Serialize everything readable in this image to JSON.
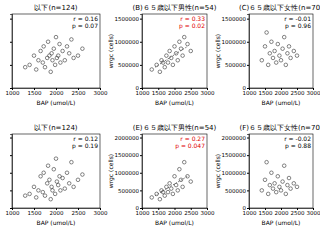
{
  "chart_data": [
    {
      "type": "scatter",
      "title": "以下(n=124)",
      "x_label": "BAP (umol/L)",
      "tick_labels": "x",
      "xlim": [
        1000,
        3000
      ],
      "xticks": [
        1000,
        1500,
        2000,
        2500,
        3000
      ],
      "ylim": [
        0,
        1600000
      ],
      "yticks": [
        0,
        500000,
        1000000,
        1500000
      ],
      "annotations": [
        {
          "text": "r = 0.16",
          "color": "#000000"
        },
        {
          "text": "p = 0.07",
          "color": "#000000"
        }
      ],
      "series": [
        {
          "type": "scatter",
          "marker": "circle",
          "color": "#333333",
          "x": [
            1400,
            1500,
            1550,
            1600,
            1650,
            1700,
            1720,
            1750,
            1800,
            1820,
            1850,
            1880,
            1900,
            1920,
            1950,
            1980,
            2000,
            2020,
            2050,
            2080,
            2100,
            2150,
            2200,
            2250,
            2300,
            2350,
            2400,
            2500,
            2600,
            1300
          ],
          "values": [
            500000,
            700000,
            400000,
            600000,
            800000,
            550000,
            900000,
            450000,
            650000,
            1000000,
            700000,
            350000,
            750000,
            600000,
            850000,
            500000,
            1100000,
            650000,
            700000,
            950000,
            550000,
            800000,
            600000,
            900000,
            750000,
            1050000,
            650000,
            700000,
            850000,
            450000
          ]
        }
      ]
    },
    {
      "type": "scatter",
      "title": "(B)６５歳以下男性(n=54)",
      "x_label": "BAP (umol/L)",
      "y_label": "wrgc (cells)",
      "xlim": [
        1000,
        3000
      ],
      "xticks": [
        1000,
        1500,
        2000,
        2500,
        3000
      ],
      "ylim": [
        0,
        1600000
      ],
      "yticks": [
        0,
        500000,
        1000000,
        1500000
      ],
      "annotations": [
        {
          "text": "r = 0.33",
          "color": "#e00000"
        },
        {
          "text": "p = 0.02",
          "color": "#e00000"
        }
      ],
      "series": [
        {
          "type": "scatter",
          "marker": "circle",
          "color": "#333333",
          "x": [
            1300,
            1450,
            1550,
            1600,
            1700,
            1750,
            1800,
            1850,
            1900,
            1950,
            2000,
            2050,
            2100,
            2150,
            2200,
            2250,
            2300,
            2400,
            2500,
            1650
          ],
          "values": [
            400000,
            500000,
            350000,
            600000,
            450000,
            700000,
            550000,
            800000,
            650000,
            500000,
            900000,
            750000,
            600000,
            1000000,
            850000,
            700000,
            1100000,
            950000,
            800000,
            550000
          ]
        },
        {
          "type": "line",
          "line_style": "dotted",
          "color": "#555555",
          "x": [
            1400,
            2400
          ],
          "values": [
            450000,
            900000
          ]
        }
      ]
    },
    {
      "type": "scatter",
      "title": "(C)６５歳以下女性(n=70)",
      "x_label": "BAP (umol/L)",
      "y_label": "wrgc (cells)",
      "xlim": [
        1000,
        3000
      ],
      "xticks": [
        1000,
        1500,
        2000,
        2500,
        3000
      ],
      "ylim": [
        0,
        1600000
      ],
      "yticks": [
        0,
        500000,
        1000000,
        1500000
      ],
      "annotations": [
        {
          "text": "r = -0.01",
          "color": "#000000"
        },
        {
          "text": "p = 0.96",
          "color": "#000000"
        }
      ],
      "series": [
        {
          "type": "scatter",
          "marker": "circle",
          "color": "#333333",
          "x": [
            1400,
            1500,
            1600,
            1650,
            1700,
            1750,
            1800,
            1850,
            1900,
            1950,
            2000,
            2050,
            2100,
            2150,
            2200,
            2250,
            2300,
            2400,
            2500,
            1550
          ],
          "values": [
            600000,
            900000,
            500000,
            750000,
            1000000,
            650000,
            800000,
            550000,
            950000,
            700000,
            600000,
            850000,
            1100000,
            500000,
            750000,
            900000,
            650000,
            800000,
            700000,
            1200000
          ]
        }
      ]
    },
    {
      "type": "scatter",
      "title": "以下(n=124)",
      "x_label": "BAP (umol/L)",
      "tick_labels": "x",
      "xlim": [
        1000,
        3000
      ],
      "xticks": [
        1000,
        1500,
        2000,
        2500,
        3000
      ],
      "ylim": [
        0,
        2100000
      ],
      "yticks": [
        0,
        500000,
        1000000,
        1500000,
        2000000
      ],
      "annotations": [
        {
          "text": "r = 0.12",
          "color": "#000000"
        },
        {
          "text": "p = 0.19",
          "color": "#000000"
        }
      ],
      "series": [
        {
          "type": "scatter",
          "marker": "circle",
          "color": "#333333",
          "x": [
            1400,
            1500,
            1550,
            1600,
            1650,
            1700,
            1720,
            1750,
            1800,
            1820,
            1850,
            1880,
            1900,
            1920,
            1950,
            1980,
            2000,
            2020,
            2050,
            2080,
            2100,
            2150,
            2200,
            2250,
            2300,
            2350,
            2400,
            2500,
            2600,
            1300
          ],
          "values": [
            400000,
            600000,
            300000,
            500000,
            900000,
            450000,
            1000000,
            350000,
            700000,
            1200000,
            800000,
            250000,
            600000,
            500000,
            1100000,
            400000,
            1400000,
            750000,
            650000,
            900000,
            500000,
            850000,
            550000,
            1000000,
            700000,
            1300000,
            600000,
            800000,
            950000,
            350000
          ]
        }
      ]
    },
    {
      "type": "scatter",
      "title": "(E)６５歳以下男性(n=54)",
      "x_label": "BAP (umol/L)",
      "y_label": "wrgc (cells)",
      "xlim": [
        1000,
        3000
      ],
      "xticks": [
        1000,
        1500,
        2000,
        2500,
        3000
      ],
      "ylim": [
        0,
        2100000
      ],
      "yticks": [
        0,
        500000,
        1000000,
        1500000,
        2000000
      ],
      "annotations": [
        {
          "text": "r = 0.27",
          "color": "#e00000"
        },
        {
          "text": "p = 0.047",
          "color": "#e00000"
        }
      ],
      "series": [
        {
          "type": "scatter",
          "marker": "circle",
          "color": "#333333",
          "x": [
            1300,
            1450,
            1550,
            1600,
            1700,
            1750,
            1800,
            1850,
            1900,
            1950,
            2000,
            2050,
            2100,
            2150,
            2200,
            2250,
            2300,
            2400,
            2500,
            1650
          ],
          "values": [
            300000,
            400000,
            250000,
            500000,
            350000,
            600000,
            450000,
            700000,
            550000,
            400000,
            900000,
            650000,
            500000,
            1100000,
            800000,
            600000,
            1300000,
            900000,
            750000,
            450000
          ]
        },
        {
          "type": "line",
          "line_style": "dotted",
          "color": "#555555",
          "x": [
            1400,
            2400
          ],
          "values": [
            350000,
            900000
          ]
        }
      ]
    },
    {
      "type": "scatter",
      "title": "(F)６５歳以下女性(n=70)",
      "x_label": "BAP (umol/L)",
      "y_label": "wrgc (cells)",
      "xlim": [
        1000,
        3000
      ],
      "xticks": [
        1000,
        1500,
        2000,
        2500,
        3000
      ],
      "ylim": [
        0,
        2100000
      ],
      "yticks": [
        0,
        500000,
        1000000,
        1500000,
        2000000
      ],
      "annotations": [
        {
          "text": "r = -0.02",
          "color": "#000000"
        },
        {
          "text": "p = 0.88",
          "color": "#000000"
        }
      ],
      "series": [
        {
          "type": "scatter",
          "marker": "circle",
          "color": "#333333",
          "x": [
            1400,
            1500,
            1600,
            1650,
            1700,
            1750,
            1800,
            1850,
            1900,
            1950,
            2000,
            2050,
            2100,
            2150,
            2200,
            2250,
            2300,
            2400,
            2500,
            1550
          ],
          "values": [
            500000,
            800000,
            400000,
            650000,
            1000000,
            550000,
            700000,
            450000,
            900000,
            600000,
            500000,
            750000,
            1200000,
            400000,
            650000,
            850000,
            550000,
            700000,
            600000,
            1300000
          ]
        }
      ]
    }
  ]
}
